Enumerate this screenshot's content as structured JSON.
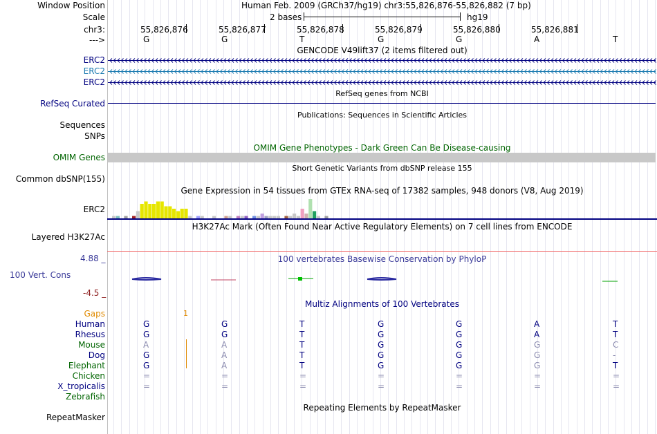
{
  "header": {
    "window_position_label": "Window Position",
    "window_position_value": "Human Feb. 2009 (GRCh37/hg19)   chr3:55,826,876-55,826,882 (7 bp)",
    "scale_label": "Scale",
    "scale_value": "2 bases",
    "scale_db": "hg19",
    "chrom_label": "chr3:",
    "strand_label": "--->",
    "positions": [
      "55,826,876",
      "55,826,877",
      "55,826,878",
      "55,826,879",
      "55,826,880",
      "55,826,881"
    ],
    "bases": [
      "G",
      "G",
      "T",
      "G",
      "G",
      "A",
      "T"
    ]
  },
  "tracks": {
    "gencode_title": "GENCODE V49lift37 (2 items filtered out)",
    "gencode_items": [
      "ERC2",
      "ERC2",
      "ERC2"
    ],
    "refseq_title": "RefSeq genes from NCBI",
    "refseq_label": "RefSeq Curated",
    "pubs_title": "Publications: Sequences in Scientific Articles",
    "pubs_labels": [
      "Sequences",
      "SNPs"
    ],
    "omim_title": "OMIM Gene Phenotypes - Dark Green Can Be Disease-causing",
    "omim_label": "OMIM Genes",
    "dbsnp_title": "Short Genetic Variants from dbSNP release 155",
    "dbsnp_label": "Common dbSNP(155)",
    "gtex_title": "Gene Expression in 54 tissues from GTEx RNA-seq of 17382 samples, 948 donors (V8, Aug 2019)",
    "gtex_label": "ERC2",
    "h3k27ac_title": "H3K27Ac Mark (Often Found Near Active Regulatory Elements) on 7 cell lines from ENCODE",
    "h3k27ac_label": "Layered H3K27Ac",
    "phylop_title": "100 vertebrates Basewise Conservation by PhyloP",
    "phylop_label": "100 Vert. Cons",
    "phylop_max": "4.88 _",
    "phylop_min": "-4.5 _",
    "multiz_title": "Multiz Alignments of 100 Vertebrates",
    "repeat_title": "Repeating Elements by RepeatMasker",
    "repeat_label": "RepeatMasker"
  },
  "alignment": {
    "gaps_label": "Gaps",
    "gaps_count": "1",
    "species": [
      {
        "name": "Human",
        "bases": [
          "G",
          "G",
          "T",
          "G",
          "G",
          "A",
          "T"
        ]
      },
      {
        "name": "Rhesus",
        "bases": [
          "G",
          "G",
          "T",
          "G",
          "G",
          "A",
          "T"
        ]
      },
      {
        "name": "Mouse",
        "bases": [
          "A",
          "A",
          "T",
          "G",
          "G",
          "G",
          "C"
        ]
      },
      {
        "name": "Dog",
        "bases": [
          "G",
          "A",
          "T",
          "G",
          "G",
          "G",
          "-"
        ]
      },
      {
        "name": "Elephant",
        "bases": [
          "G",
          "A",
          "T",
          "G",
          "G",
          "G",
          "T"
        ]
      },
      {
        "name": "Chicken",
        "bases": [
          "=",
          "=",
          "=",
          "=",
          "=",
          "=",
          "="
        ]
      },
      {
        "name": "X_tropicalis",
        "bases": [
          "=",
          "=",
          "=",
          "=",
          "=",
          "=",
          "="
        ]
      },
      {
        "name": "Zebrafish",
        "bases": [
          "",
          "",
          "",
          "",
          "",
          "",
          ""
        ]
      }
    ]
  },
  "gtex_chart_data": {
    "type": "bar",
    "title": "Gene Expression in 54 tissues from GTEx RNA-seq of 17382 samples, 948 donors (V8, Aug 2019)",
    "values": [
      1,
      1,
      0,
      1,
      0,
      1,
      3,
      6,
      7,
      6,
      6,
      7,
      7,
      5,
      5,
      4,
      3,
      4,
      4,
      1,
      0,
      1,
      1,
      0,
      0,
      1,
      0,
      0,
      1,
      1,
      0,
      1,
      1,
      1,
      0,
      1,
      1,
      2,
      1,
      1,
      1,
      1,
      0,
      1,
      1,
      2,
      1,
      4,
      2,
      8,
      3,
      1,
      0,
      1
    ]
  },
  "colors": {
    "navy": "#000080",
    "teal": "#1a7ab0",
    "omim_gray": "#c8c8c8",
    "h3k27ac_line": "#f06060",
    "gtex_yellow": "#e6e600",
    "gaps_orange": "#e08a00"
  }
}
